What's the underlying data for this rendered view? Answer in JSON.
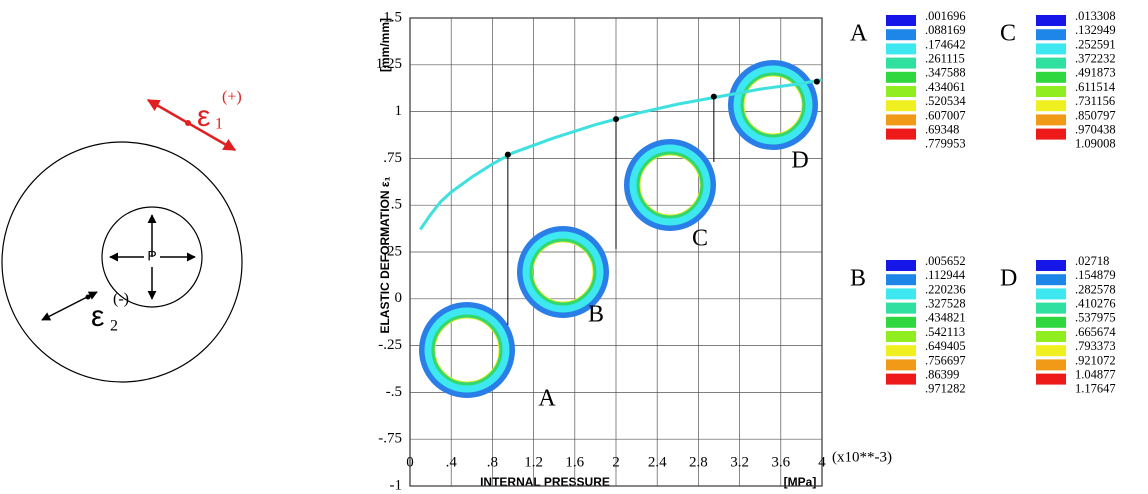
{
  "diagram": {
    "center_label": "P",
    "strain1_symbol": "ε",
    "strain1_sub": "1",
    "strain1_sign": "(+)",
    "strain2_symbol": "ε",
    "strain2_sub": "2",
    "strain2_sign": "(-)"
  },
  "chart_data": {
    "type": "line",
    "y_label": "ELASTIC DEFORMATION  ε₁",
    "y_unit": "[mm/mm]",
    "x_label": "INTERNAL PRESSURE",
    "x_unit": "[MPa]",
    "x_multiplier": "(x10**-3)",
    "x": [
      0.1,
      0.2,
      0.3,
      0.4,
      0.6,
      0.8,
      1.0,
      1.4,
      1.8,
      2.2,
      2.6,
      3.0,
      3.4,
      3.8,
      4.0
    ],
    "values": [
      0.37,
      0.45,
      0.52,
      0.57,
      0.65,
      0.72,
      0.78,
      0.86,
      0.93,
      0.99,
      1.04,
      1.08,
      1.12,
      1.15,
      1.17
    ],
    "color": "#3ee0e0",
    "points": {
      "x": [
        0.95,
        2.0,
        2.95,
        3.95
      ],
      "values": [
        0.77,
        0.96,
        1.08,
        1.16
      ],
      "labels": [
        "A",
        "B",
        "C",
        "D"
      ]
    },
    "xlim": [
      0,
      4
    ],
    "ylim": [
      -1,
      1.5
    ],
    "xticks": [
      0,
      {
        "value": 0.4,
        "label": ".4"
      },
      {
        "value": 0.8,
        "label": ".8"
      },
      1.2,
      1.6,
      2,
      2.4,
      2.8,
      3.2,
      3.6,
      4
    ],
    "yticks": [
      -1,
      {
        "value": -0.75,
        "label": "-.75"
      },
      {
        "value": -0.5,
        "label": "-.5"
      },
      {
        "value": -0.25,
        "label": "-.25"
      },
      0,
      {
        "value": 0.25,
        "label": ".25"
      },
      {
        "value": 0.5,
        "label": ".5"
      },
      {
        "value": 0.75,
        "label": ".75"
      },
      1,
      1.25,
      1.5
    ],
    "grid": true,
    "legend_colors": [
      "#1616e8",
      "#1e86e8",
      "#3ee8f0",
      "#30e0a0",
      "#30d840",
      "#90ee20",
      "#f0f020",
      "#f09a18",
      "#ee1a1a"
    ],
    "legends": [
      {
        "label": "A",
        "values": [
          ".001696",
          ".088169",
          ".174642",
          ".261115",
          ".347588",
          ".434061",
          ".520534",
          ".607007",
          ".69348",
          ".779953"
        ]
      },
      {
        "label": "C",
        "values": [
          ".013308",
          ".132949",
          ".252591",
          ".372232",
          ".491873",
          ".611514",
          ".731156",
          ".850797",
          ".970438",
          "1.09008"
        ]
      },
      {
        "label": "B",
        "values": [
          ".005652",
          ".112944",
          ".220236",
          ".327528",
          ".434821",
          ".542113",
          ".649405",
          ".756697",
          ".86399",
          ".971282"
        ]
      },
      {
        "label": "D",
        "values": [
          ".02718",
          ".154879",
          ".282578",
          ".410276",
          ".537975",
          ".665674",
          ".793373",
          ".921072",
          "1.04877",
          "1.17647"
        ]
      }
    ]
  }
}
